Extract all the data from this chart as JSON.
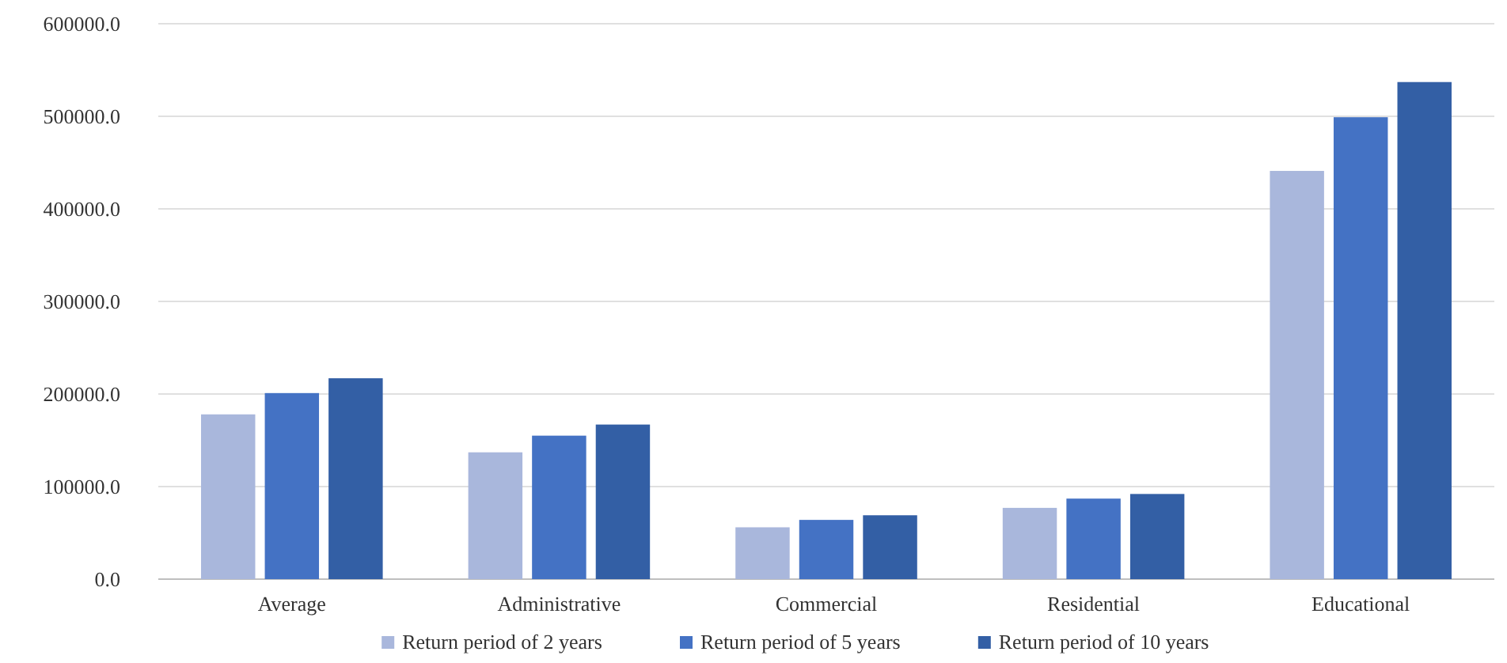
{
  "chart_data": {
    "type": "bar",
    "categories": [
      "Average",
      "Administrative",
      "Commercial",
      "Residential",
      "Educational"
    ],
    "series": [
      {
        "name": "Return period of 2 years",
        "color": "#a9b7dc",
        "values": [
          178000,
          137000,
          56000,
          77000,
          441000
        ]
      },
      {
        "name": "Return period of 5 years",
        "color": "#4472c4",
        "values": [
          201000,
          155000,
          64000,
          87000,
          499000
        ]
      },
      {
        "name": "Return period of 10 years",
        "color": "#335fa5",
        "values": [
          217000,
          167000,
          69000,
          92000,
          537000
        ]
      }
    ],
    "ylim": [
      0,
      600000
    ],
    "yticks": [
      {
        "value": 0,
        "label": "0.0"
      },
      {
        "value": 100000,
        "label": "100000.0"
      },
      {
        "value": 200000,
        "label": "200000.0"
      },
      {
        "value": 300000,
        "label": "300000.0"
      },
      {
        "value": 400000,
        "label": "400000.0"
      },
      {
        "value": 500000,
        "label": "500000.0"
      },
      {
        "value": 600000,
        "label": "600000.0"
      }
    ],
    "grid": "y",
    "legend": "bottom"
  }
}
